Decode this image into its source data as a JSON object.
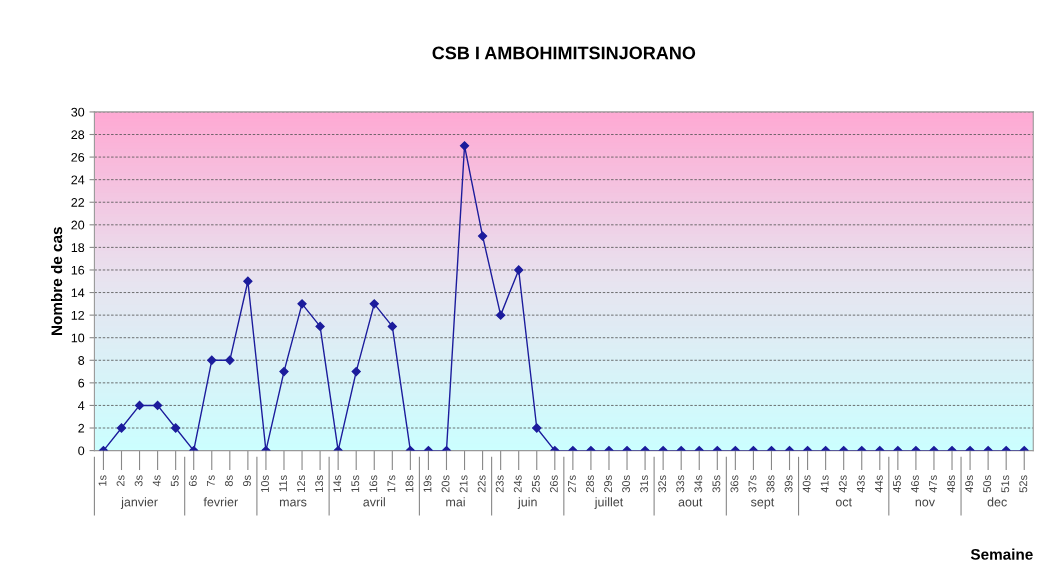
{
  "chart_data": {
    "type": "line",
    "title": "CSB I AMBOHIMITSINJORANO",
    "xlabel": "Semaine",
    "ylabel": "Nombre de cas",
    "categories": [
      "1s",
      "2s",
      "3s",
      "4s",
      "5s",
      "6s",
      "7s",
      "8s",
      "9s",
      "10s",
      "11s",
      "12s",
      "13s",
      "14s",
      "15s",
      "16s",
      "17s",
      "18s",
      "19s",
      "20s",
      "21s",
      "22s",
      "23s",
      "24s",
      "25s",
      "26s",
      "27s",
      "28s",
      "29s",
      "30s",
      "31s",
      "32s",
      "33s",
      "34s",
      "35s",
      "36s",
      "37s",
      "38s",
      "39s",
      "40s",
      "41s",
      "42s",
      "43s",
      "44s",
      "45s",
      "46s",
      "47s",
      "48s",
      "49s",
      "50s",
      "51s",
      "52s"
    ],
    "series": [
      {
        "color": "#1c1c9c",
        "values": [
          0,
          2,
          4,
          4,
          2,
          0,
          8,
          8,
          15,
          0,
          7,
          13,
          11,
          0,
          7,
          13,
          11,
          0,
          0,
          0,
          27,
          19,
          12,
          16,
          2,
          0,
          0,
          0,
          0,
          0,
          0,
          0,
          0,
          0,
          0,
          0,
          0,
          0,
          0,
          0,
          0,
          0,
          0,
          0,
          0,
          0,
          0,
          0,
          0,
          0,
          0,
          0
        ]
      }
    ],
    "ylim": [
      0,
      30
    ],
    "yticks": [
      0,
      2,
      4,
      6,
      8,
      10,
      12,
      14,
      16,
      18,
      20,
      22,
      24,
      26,
      28,
      30
    ],
    "grid": "y",
    "marker": "diamond",
    "line_style": "solid",
    "legend": false,
    "annotations": [
      "janvier",
      "fevrier",
      "mars",
      "avril",
      "mai",
      "juin",
      "juillet",
      "aout",
      "sept",
      "oct",
      "nov",
      "dec"
    ]
  }
}
